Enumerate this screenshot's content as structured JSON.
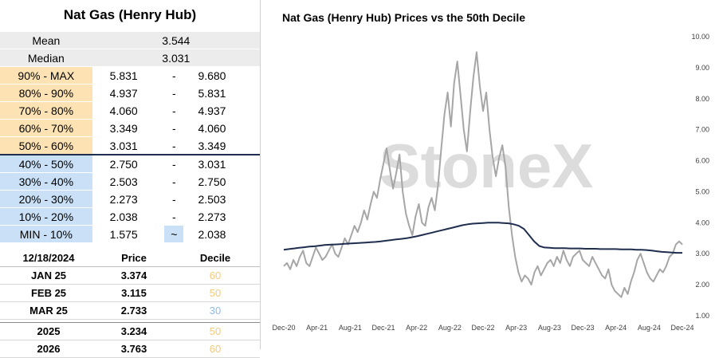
{
  "left": {
    "title": "Nat Gas (Henry Hub)",
    "stats": [
      {
        "label": "Mean",
        "value": "3.544"
      },
      {
        "label": "Median",
        "value": "3.031"
      }
    ],
    "deciles": [
      {
        "label": "90% - MAX",
        "low": "5.831",
        "sep": "-",
        "high": "9.680",
        "color": "orange"
      },
      {
        "label": "80% - 90%",
        "low": "4.937",
        "sep": "-",
        "high": "5.831",
        "color": "orange"
      },
      {
        "label": "70% - 80%",
        "low": "4.060",
        "sep": "-",
        "high": "4.937",
        "color": "orange"
      },
      {
        "label": "60% - 70%",
        "low": "3.349",
        "sep": "-",
        "high": "4.060",
        "color": "orange"
      },
      {
        "label": "50% - 60%",
        "low": "3.031",
        "sep": "-",
        "high": "3.349",
        "color": "orange"
      },
      {
        "label": "40% - 50%",
        "low": "2.750",
        "sep": "-",
        "high": "3.031",
        "color": "blue"
      },
      {
        "label": "30% - 40%",
        "low": "2.503",
        "sep": "-",
        "high": "2.750",
        "color": "blue"
      },
      {
        "label": "20% - 30%",
        "low": "2.273",
        "sep": "-",
        "high": "2.503",
        "color": "blue"
      },
      {
        "label": "10% - 20%",
        "low": "2.038",
        "sep": "-",
        "high": "2.273",
        "color": "blue"
      },
      {
        "label": "MIN - 10%",
        "low": "1.575",
        "sep": "~",
        "high": "2.038",
        "color": "blue"
      }
    ],
    "futures": {
      "headers": [
        "12/18/2024",
        "Price",
        "Decile"
      ],
      "rows": [
        {
          "label": "JAN 25",
          "price": "3.374",
          "decile": "60",
          "color": "#f5c97a"
        },
        {
          "label": "FEB 25",
          "price": "3.115",
          "decile": "50",
          "color": "#f5c97a"
        },
        {
          "label": "MAR 25",
          "price": "2.733",
          "decile": "30",
          "color": "#8fbde8"
        }
      ],
      "annual": [
        {
          "label": "2025",
          "price": "3.234",
          "decile": "50",
          "color": "#f5c97a"
        },
        {
          "label": "2026",
          "price": "3.763",
          "decile": "60",
          "color": "#f5c97a"
        }
      ]
    }
  },
  "chart_data": {
    "type": "line",
    "title": "Nat Gas (Henry Hub) Prices vs the 50th Decile",
    "watermark": "StoneX",
    "xlabel": "",
    "ylabel": "",
    "ylim": [
      1.0,
      10.0
    ],
    "yticks": [
      "1.00",
      "2.00",
      "3.00",
      "4.00",
      "5.00",
      "6.00",
      "7.00",
      "8.00",
      "9.00",
      "10.00"
    ],
    "xticks": [
      "Dec-20",
      "Apr-21",
      "Aug-21",
      "Dec-21",
      "Apr-22",
      "Aug-22",
      "Dec-22",
      "Apr-23",
      "Aug-23",
      "Dec-23",
      "Apr-24",
      "Aug-24",
      "Dec-24"
    ],
    "grid": false,
    "series": [
      {
        "role": "price",
        "color": "#a6a6a6",
        "values": [
          2.6,
          2.7,
          2.5,
          2.8,
          2.6,
          2.9,
          3.1,
          2.7,
          2.6,
          2.9,
          3.2,
          3.0,
          2.8,
          2.9,
          3.1,
          3.3,
          3.0,
          2.9,
          3.2,
          3.5,
          3.3,
          3.6,
          3.9,
          3.7,
          4.0,
          4.4,
          4.1,
          4.6,
          5.0,
          4.8,
          5.4,
          5.9,
          6.4,
          5.7,
          5.1,
          5.6,
          6.2,
          5.0,
          4.3,
          3.9,
          3.6,
          4.2,
          4.6,
          4.0,
          3.9,
          4.5,
          4.8,
          4.4,
          5.2,
          6.4,
          7.5,
          8.2,
          7.1,
          8.5,
          9.2,
          8.1,
          7.0,
          6.3,
          7.6,
          8.7,
          9.5,
          8.4,
          7.6,
          8.2,
          7.0,
          6.1,
          5.5,
          6.1,
          6.5,
          5.8,
          4.5,
          3.6,
          2.9,
          2.4,
          2.1,
          2.3,
          2.2,
          2.0,
          2.4,
          2.6,
          2.3,
          2.5,
          2.7,
          2.8,
          2.6,
          2.9,
          2.7,
          3.1,
          2.8,
          2.6,
          2.9,
          3.0,
          3.1,
          2.8,
          2.7,
          2.6,
          2.9,
          2.7,
          2.5,
          2.3,
          2.2,
          2.5,
          2.0,
          1.8,
          1.7,
          1.6,
          1.9,
          1.7,
          2.1,
          2.4,
          2.8,
          3.0,
          2.7,
          2.4,
          2.2,
          2.1,
          2.3,
          2.5,
          2.4,
          2.6,
          2.9,
          3.0,
          3.3,
          3.4,
          3.3
        ]
      },
      {
        "role": "50th-decile",
        "color": "#1f2d4e",
        "values": [
          3.13,
          3.15,
          3.17,
          3.19,
          3.21,
          3.23,
          3.24,
          3.26,
          3.28,
          3.29,
          3.3,
          3.31,
          3.32,
          3.33,
          3.34,
          3.35,
          3.36,
          3.37,
          3.38,
          3.4,
          3.42,
          3.44,
          3.46,
          3.48,
          3.5,
          3.53,
          3.56,
          3.6,
          3.64,
          3.68,
          3.72,
          3.76,
          3.8,
          3.84,
          3.88,
          3.92,
          3.95,
          3.97,
          3.98,
          3.99,
          4.0,
          4.0,
          4.0,
          3.99,
          3.98,
          3.95,
          3.9,
          3.8,
          3.6,
          3.4,
          3.25,
          3.2,
          3.19,
          3.18,
          3.18,
          3.18,
          3.17,
          3.17,
          3.17,
          3.16,
          3.16,
          3.16,
          3.15,
          3.15,
          3.15,
          3.15,
          3.14,
          3.14,
          3.14,
          3.13,
          3.13,
          3.12,
          3.1,
          3.08,
          3.06,
          3.05,
          3.04,
          3.03,
          3.03
        ]
      }
    ]
  }
}
